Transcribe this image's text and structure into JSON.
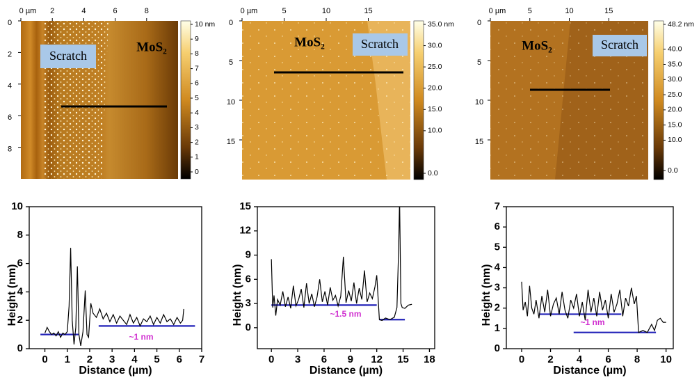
{
  "afm_images": [
    {
      "xlim": [
        0,
        10
      ],
      "xticks": [
        {
          "value": 0,
          "label": "0 µm"
        },
        2,
        4,
        6,
        8
      ],
      "ylim": [
        0,
        10
      ],
      "yticks": [
        0,
        2,
        4,
        6,
        8
      ],
      "colorbar": {
        "range": [
          0,
          10
        ],
        "ticks": [
          {
            "value": 10,
            "label": "10 nm"
          },
          9,
          8,
          7,
          6,
          5,
          4,
          3,
          2,
          1,
          0
        ]
      },
      "labels": {
        "scratch": "Scratch",
        "material": "MoS₂"
      }
    },
    {
      "xlim": [
        0,
        20
      ],
      "xticks": [
        {
          "value": 0,
          "label": "0 µm"
        },
        5,
        10,
        15
      ],
      "ylim": [
        0,
        20
      ],
      "yticks": [
        0,
        5,
        10,
        15
      ],
      "colorbar": {
        "range": [
          0,
          35
        ],
        "ticks": [
          {
            "value": 35,
            "label": "35.0 nm"
          },
          {
            "value": 30,
            "label": "30.0"
          },
          {
            "value": 25,
            "label": "25.0"
          },
          {
            "value": 20,
            "label": "20.0"
          },
          {
            "value": 15,
            "label": "15.0"
          },
          {
            "value": 10,
            "label": "10.0"
          },
          {
            "value": 0,
            "label": "0.0"
          }
        ]
      },
      "labels": {
        "scratch": "Scratch",
        "material": "MoS₂"
      }
    },
    {
      "xlim": [
        0,
        20
      ],
      "xticks": [
        {
          "value": 0,
          "label": "0 µm"
        },
        5,
        10,
        15
      ],
      "ylim": [
        0,
        20
      ],
      "yticks": [
        0,
        5,
        10,
        15
      ],
      "colorbar": {
        "range": [
          0,
          48.2
        ],
        "ticks": [
          {
            "value": 48.2,
            "label": "48.2 nm"
          },
          {
            "value": 40,
            "label": "40.0"
          },
          {
            "value": 35,
            "label": "35.0"
          },
          {
            "value": 30,
            "label": "30.0"
          },
          {
            "value": 25,
            "label": "25.0"
          },
          {
            "value": 20,
            "label": "20.0"
          },
          {
            "value": 15,
            "label": "15.0"
          },
          {
            "value": 10,
            "label": "10.0"
          },
          {
            "value": 0,
            "label": "0.0"
          }
        ]
      },
      "labels": {
        "scratch": "Scratch",
        "material": "MoS₂"
      }
    }
  ],
  "chart_data": [
    {
      "type": "line",
      "x_label": "Distance (µm)",
      "y_label": "Height (nm)",
      "color": "#000000",
      "xlim": [
        -0.7,
        7
      ],
      "xticks": [
        0,
        1,
        2,
        3,
        4,
        5,
        6,
        7
      ],
      "ylim": [
        0,
        10
      ],
      "yticks": [
        0,
        2,
        4,
        6,
        8,
        10
      ],
      "x": [
        0,
        0.1,
        0.2,
        0.3,
        0.4,
        0.5,
        0.6,
        0.7,
        0.8,
        0.9,
        1.0,
        1.08,
        1.15,
        1.22,
        1.3,
        1.38,
        1.45,
        1.52,
        1.6,
        1.7,
        1.8,
        1.88,
        1.95,
        2.05,
        2.15,
        2.3,
        2.45,
        2.6,
        2.75,
        2.9,
        3.05,
        3.2,
        3.35,
        3.5,
        3.65,
        3.8,
        3.95,
        4.1,
        4.25,
        4.4,
        4.55,
        4.7,
        4.85,
        5.0,
        5.15,
        5.3,
        5.45,
        5.6,
        5.75,
        5.9,
        6.05,
        6.15,
        6.2
      ],
      "values": [
        1.1,
        1.5,
        1.2,
        1.0,
        1.1,
        0.9,
        1.2,
        0.8,
        1.1,
        1.0,
        1.2,
        3.0,
        7.1,
        2.0,
        0.3,
        1.5,
        5.8,
        1.0,
        0.2,
        1.2,
        4.1,
        1.0,
        0.8,
        3.2,
        2.5,
        2.2,
        2.8,
        2.1,
        2.5,
        1.9,
        2.4,
        1.8,
        2.3,
        2.0,
        1.7,
        2.4,
        1.8,
        2.2,
        1.6,
        2.1,
        1.9,
        2.3,
        1.7,
        2.2,
        1.8,
        2.4,
        1.9,
        2.1,
        1.7,
        2.2,
        1.8,
        2.0,
        2.8
      ],
      "reference_lines": [
        {
          "y": 1.0,
          "x": [
            -0.2,
            1.5
          ]
        },
        {
          "y": 1.6,
          "x": [
            2.4,
            6.7
          ]
        }
      ],
      "reference_color": "#2222b8",
      "annotation": "~1 nm",
      "annotation_color": "#d030d0"
    },
    {
      "type": "line",
      "x_label": "Distance (µm)",
      "y_label": "Height (nm)",
      "color": "#000000",
      "xlim": [
        -1.6,
        18.6
      ],
      "xticks": [
        0,
        3,
        6,
        9,
        12,
        15,
        18
      ],
      "ylim": [
        -2.6,
        15
      ],
      "yticks": [
        0,
        3,
        6,
        9,
        12,
        15
      ],
      "x": [
        0,
        0.15,
        0.3,
        0.5,
        0.7,
        1.0,
        1.3,
        1.6,
        1.9,
        2.2,
        2.5,
        2.8,
        3.1,
        3.4,
        3.7,
        4.0,
        4.3,
        4.6,
        4.9,
        5.2,
        5.5,
        5.8,
        6.1,
        6.4,
        6.7,
        7.0,
        7.3,
        7.6,
        7.9,
        8.2,
        8.5,
        8.8,
        9.1,
        9.4,
        9.7,
        10.0,
        10.3,
        10.6,
        10.9,
        11.2,
        11.5,
        11.8,
        12.0,
        12.3,
        12.6,
        13.0,
        13.5,
        14.0,
        14.3,
        14.5,
        14.6,
        14.75,
        14.9,
        15.2,
        15.6,
        16.0
      ],
      "values": [
        8.5,
        2.5,
        4.0,
        1.5,
        3.5,
        2.8,
        4.5,
        2.6,
        3.8,
        2.4,
        5.2,
        2.7,
        3.5,
        4.8,
        2.5,
        5.5,
        3.0,
        4.2,
        2.6,
        3.8,
        6.0,
        3.2,
        4.5,
        2.8,
        5.0,
        3.4,
        4.0,
        2.7,
        3.9,
        8.8,
        3.1,
        4.6,
        3.3,
        5.6,
        3.0,
        4.9,
        3.5,
        7.1,
        3.2,
        4.3,
        3.6,
        5.1,
        6.5,
        1.0,
        0.9,
        1.2,
        1.0,
        1.3,
        2.5,
        10.0,
        16.0,
        3.0,
        2.5,
        2.4,
        2.8,
        2.9
      ],
      "reference_lines": [
        {
          "y": 2.8,
          "x": [
            0,
            12
          ]
        },
        {
          "y": 1.0,
          "x": [
            12.3,
            15.2
          ]
        }
      ],
      "reference_color": "#2222b8",
      "annotation": "~1.5 nm",
      "annotation_color": "#d030d0"
    },
    {
      "type": "line",
      "x_label": "Distance (µm)",
      "y_label": "Height (nm)",
      "color": "#000000",
      "xlim": [
        -1.06,
        10.5
      ],
      "xticks": [
        0,
        2,
        4,
        6,
        8,
        10
      ],
      "ylim": [
        0,
        7
      ],
      "yticks": [
        0,
        1,
        2,
        3,
        4,
        5,
        6,
        7
      ],
      "x": [
        0,
        0.1,
        0.25,
        0.4,
        0.55,
        0.7,
        0.85,
        1.0,
        1.2,
        1.4,
        1.6,
        1.8,
        2.0,
        2.2,
        2.4,
        2.6,
        2.8,
        3.0,
        3.2,
        3.4,
        3.6,
        3.8,
        4.0,
        4.2,
        4.4,
        4.6,
        4.8,
        5.0,
        5.2,
        5.4,
        5.6,
        5.8,
        6.0,
        6.2,
        6.4,
        6.6,
        6.8,
        7.0,
        7.2,
        7.4,
        7.6,
        7.8,
        7.95,
        8.1,
        8.4,
        8.7,
        9.0,
        9.2,
        9.4,
        9.6,
        9.8,
        10.0
      ],
      "values": [
        3.3,
        1.9,
        2.3,
        1.6,
        3.1,
        2.0,
        1.7,
        2.4,
        1.5,
        2.6,
        1.8,
        2.9,
        1.6,
        2.2,
        2.5,
        1.7,
        2.8,
        1.9,
        1.5,
        2.4,
        2.0,
        2.7,
        1.6,
        2.3,
        1.4,
        2.9,
        1.8,
        2.5,
        1.6,
        2.8,
        1.9,
        2.4,
        1.5,
        2.7,
        1.8,
        2.2,
        2.9,
        1.6,
        2.5,
        2.1,
        3.0,
        2.2,
        2.6,
        0.8,
        0.9,
        0.8,
        1.2,
        0.9,
        1.4,
        1.5,
        1.3,
        1.3
      ],
      "reference_lines": [
        {
          "y": 1.7,
          "x": [
            1.2,
            6.9
          ]
        },
        {
          "y": 0.8,
          "x": [
            3.6,
            9.3
          ]
        }
      ],
      "reference_color": "#2222b8",
      "annotation": "~1 nm",
      "annotation_color": "#d030d0"
    }
  ]
}
